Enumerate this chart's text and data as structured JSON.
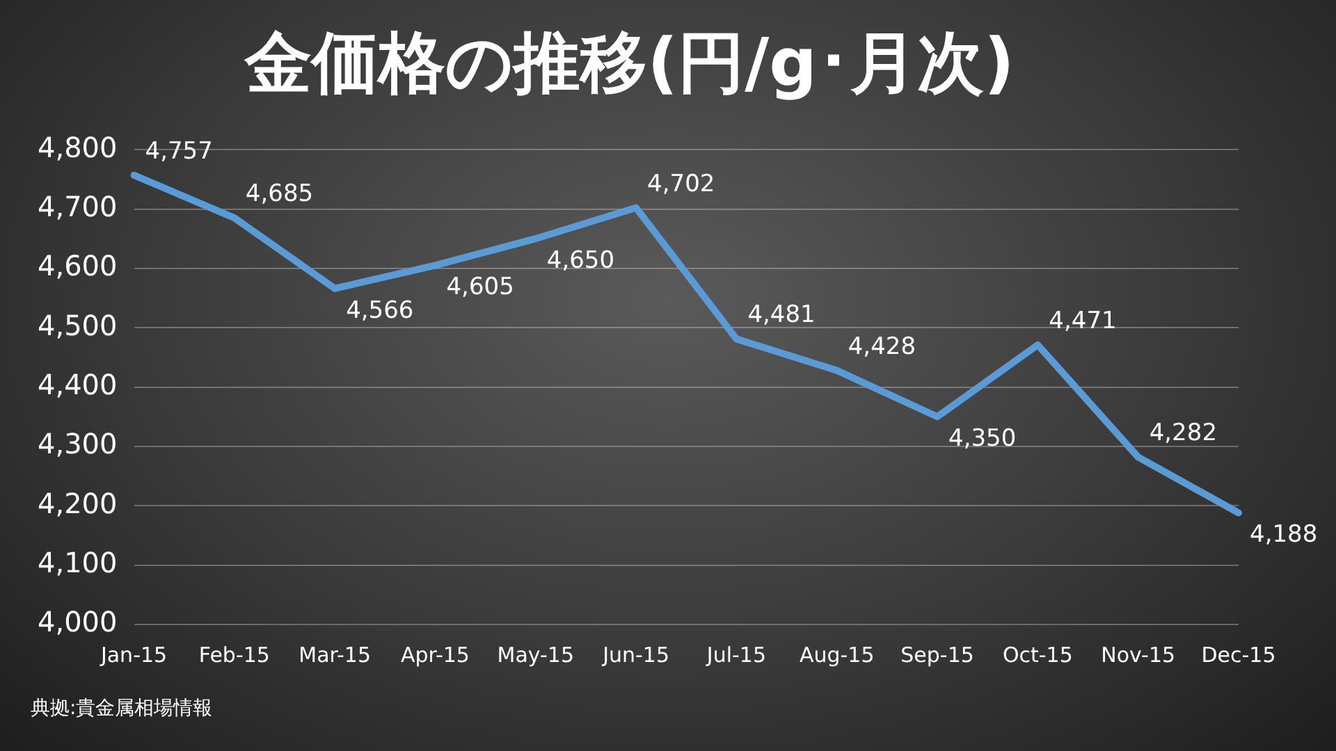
{
  "chart_data": {
    "type": "line",
    "title": "金価格の推移(円/g･月次)",
    "categories": [
      "Jan-15",
      "Feb-15",
      "Mar-15",
      "Apr-15",
      "May-15",
      "Jun-15",
      "Jul-15",
      "Aug-15",
      "Sep-15",
      "Oct-15",
      "Nov-15",
      "Dec-15"
    ],
    "series": [
      {
        "color": "#5b9bd5",
        "values": [
          4757,
          4685,
          4566,
          4605,
          4650,
          4702,
          4481,
          4428,
          4350,
          4471,
          4282,
          4188
        ],
        "value_labels": [
          "4,757",
          "4,685",
          "4,566",
          "4,605",
          "4,650",
          "4,702",
          "4,481",
          "4,428",
          "4,350",
          "4,471",
          "4,282",
          "4,188"
        ]
      }
    ],
    "ylim": [
      4000,
      4800
    ],
    "yticks": [
      {
        "value": 4000,
        "label": "4,000"
      },
      {
        "value": 4100,
        "label": "4,100"
      },
      {
        "value": 4200,
        "label": "4,200"
      },
      {
        "value": 4300,
        "label": "4,300"
      },
      {
        "value": 4400,
        "label": "4,400"
      },
      {
        "value": 4500,
        "label": "4,500"
      },
      {
        "value": 4600,
        "label": "4,600"
      },
      {
        "value": 4700,
        "label": "4,700"
      },
      {
        "value": 4800,
        "label": "4,800"
      }
    ],
    "grid": "y",
    "legend": false,
    "marker": "none",
    "line_style": "solid",
    "annotations": [
      "典拠:貴金属相場情報"
    ]
  }
}
